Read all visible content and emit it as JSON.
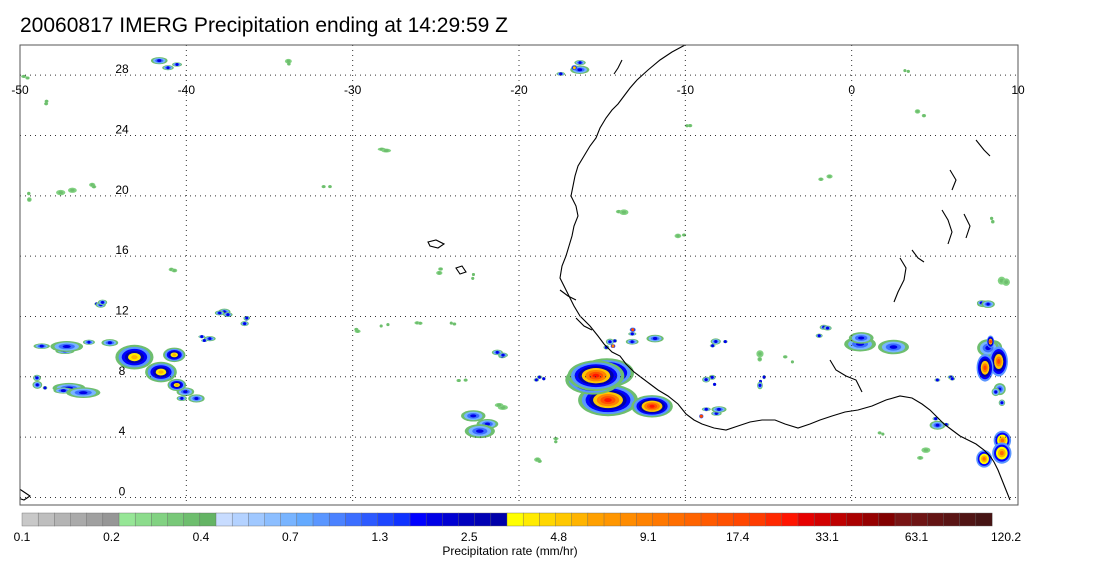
{
  "title": "20060817 IMERG Precipitation ending at 14:29:59 Z",
  "map": {
    "lon_labels": [
      "-50",
      "-40",
      "-30",
      "-20",
      "-10",
      "0",
      "10"
    ],
    "lat_labels": [
      "28",
      "24",
      "20",
      "16",
      "12",
      "8",
      "4",
      "0"
    ],
    "lon_range": [
      -50,
      10
    ],
    "lat_range": [
      -0.5,
      30
    ],
    "grid": "dotted",
    "lon_ticks": [
      -50,
      -40,
      -30,
      -20,
      -10,
      0,
      10
    ],
    "lat_ticks": [
      28,
      24,
      20,
      16,
      12,
      8,
      4,
      0
    ]
  },
  "colorbar": {
    "title": "Precipitation rate (mm/hr)",
    "labels": [
      "0.1",
      "0.2",
      "0.4",
      "0.7",
      "1.3",
      "2.5",
      "4.8",
      "9.1",
      "17.4",
      "33.1",
      "63.1",
      "120.2"
    ],
    "colors": [
      "#c8c8c8",
      "#bebebe",
      "#b4b4b4",
      "#aaaaaa",
      "#a0a0a0",
      "#969696",
      "#96e696",
      "#8cdc8c",
      "#82d282",
      "#78c878",
      "#6ebe6e",
      "#64b464",
      "#c8dcff",
      "#b4d2ff",
      "#a0c8ff",
      "#8cbeff",
      "#78b4ff",
      "#64aaff",
      "#5a96ff",
      "#4b82ff",
      "#3c6eff",
      "#2d5aff",
      "#1e46ff",
      "#0f32ff",
      "#0000ff",
      "#0000e6",
      "#0000d2",
      "#0000be",
      "#0000b4",
      "#0000aa",
      "#ffff00",
      "#ffeb00",
      "#ffd700",
      "#ffc800",
      "#ffb400",
      "#ffa000",
      "#ff9600",
      "#ff8c00",
      "#ff8200",
      "#ff7800",
      "#ff6e00",
      "#ff6400",
      "#ff5a00",
      "#ff5000",
      "#ff4600",
      "#ff3c00",
      "#ff2800",
      "#ff1400",
      "#e60000",
      "#d20000",
      "#be0000",
      "#aa0000",
      "#960000",
      "#820000",
      "#781414",
      "#6e1414",
      "#641414",
      "#5a1414",
      "#501414",
      "#461414"
    ]
  }
}
